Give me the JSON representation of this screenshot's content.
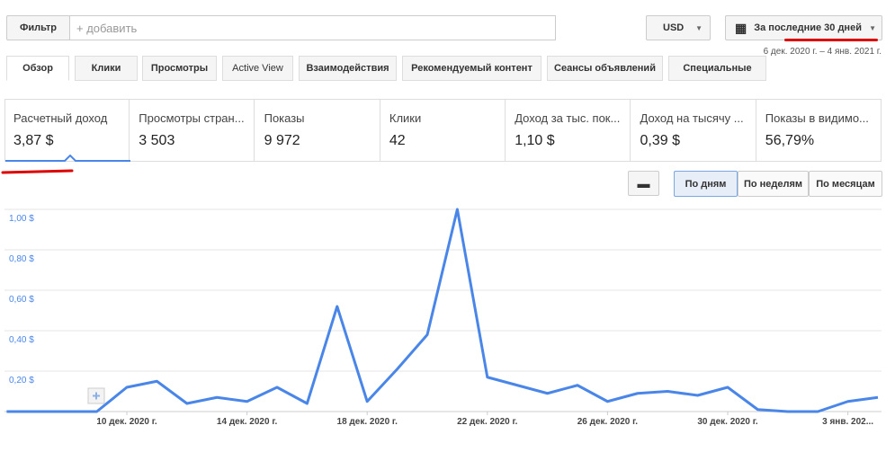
{
  "toolbar": {
    "filter_button": "Фильтр",
    "filter_placeholder": "+ добавить",
    "currency": "USD",
    "date_range": "За последние 30 дней",
    "date_caption": "6 дек. 2020 г. – 4 янв. 2021 г."
  },
  "tabs": [
    "Обзор",
    "Клики",
    "Просмотры",
    "Active View",
    "Взаимодействия",
    "Рекомендуемый контент",
    "Сеансы объявлений",
    "Специальные"
  ],
  "metrics": [
    {
      "label": "Расчетный доход",
      "value": "3,87 $"
    },
    {
      "label": "Просмотры стран...",
      "value": "3 503"
    },
    {
      "label": "Показы",
      "value": "9 972"
    },
    {
      "label": "Клики",
      "value": "42"
    },
    {
      "label": "Доход за тыс. пок...",
      "value": "1,10 $"
    },
    {
      "label": "Доход на тысячу ...",
      "value": "0,39 $"
    },
    {
      "label": "Показы в видимо...",
      "value": "56,79%"
    }
  ],
  "granularity": [
    "По дням",
    "По неделям",
    "По месяцам"
  ],
  "chart_data": {
    "type": "line",
    "categories": [
      null,
      null,
      null,
      null,
      "10 дек. 2020 г.",
      null,
      null,
      null,
      "14 дек. 2020 г.",
      null,
      null,
      null,
      "18 дек. 2020 г.",
      null,
      null,
      null,
      "22 дек. 2020 г.",
      null,
      null,
      null,
      "26 дек. 2020 г.",
      null,
      null,
      null,
      "30 дек. 2020 г.",
      null,
      null,
      null,
      "3 янв. 202...",
      null
    ],
    "series": [
      {
        "color": "#4a86e8",
        "values": [
          0,
          0,
          0,
          0,
          0.12,
          0.15,
          0.04,
          0.07,
          0.05,
          0.12,
          0.04,
          0.52,
          0.05,
          0.21,
          0.38,
          1.0,
          0.17,
          0.13,
          0.09,
          0.13,
          0.05,
          0.09,
          0.1,
          0.08,
          0.12,
          0.01,
          0,
          0,
          0.05,
          0.07
        ]
      }
    ],
    "ylim": [
      0,
      1
    ],
    "yticks": [
      {
        "value": 0.2,
        "label": "0,20 $"
      },
      {
        "value": 0.4,
        "label": "0,40 $"
      },
      {
        "value": 0.6,
        "label": "0,60 $"
      },
      {
        "value": 0.8,
        "label": "0,80 $"
      },
      {
        "value": 1,
        "label": "1,00 $"
      }
    ],
    "grid": true
  }
}
